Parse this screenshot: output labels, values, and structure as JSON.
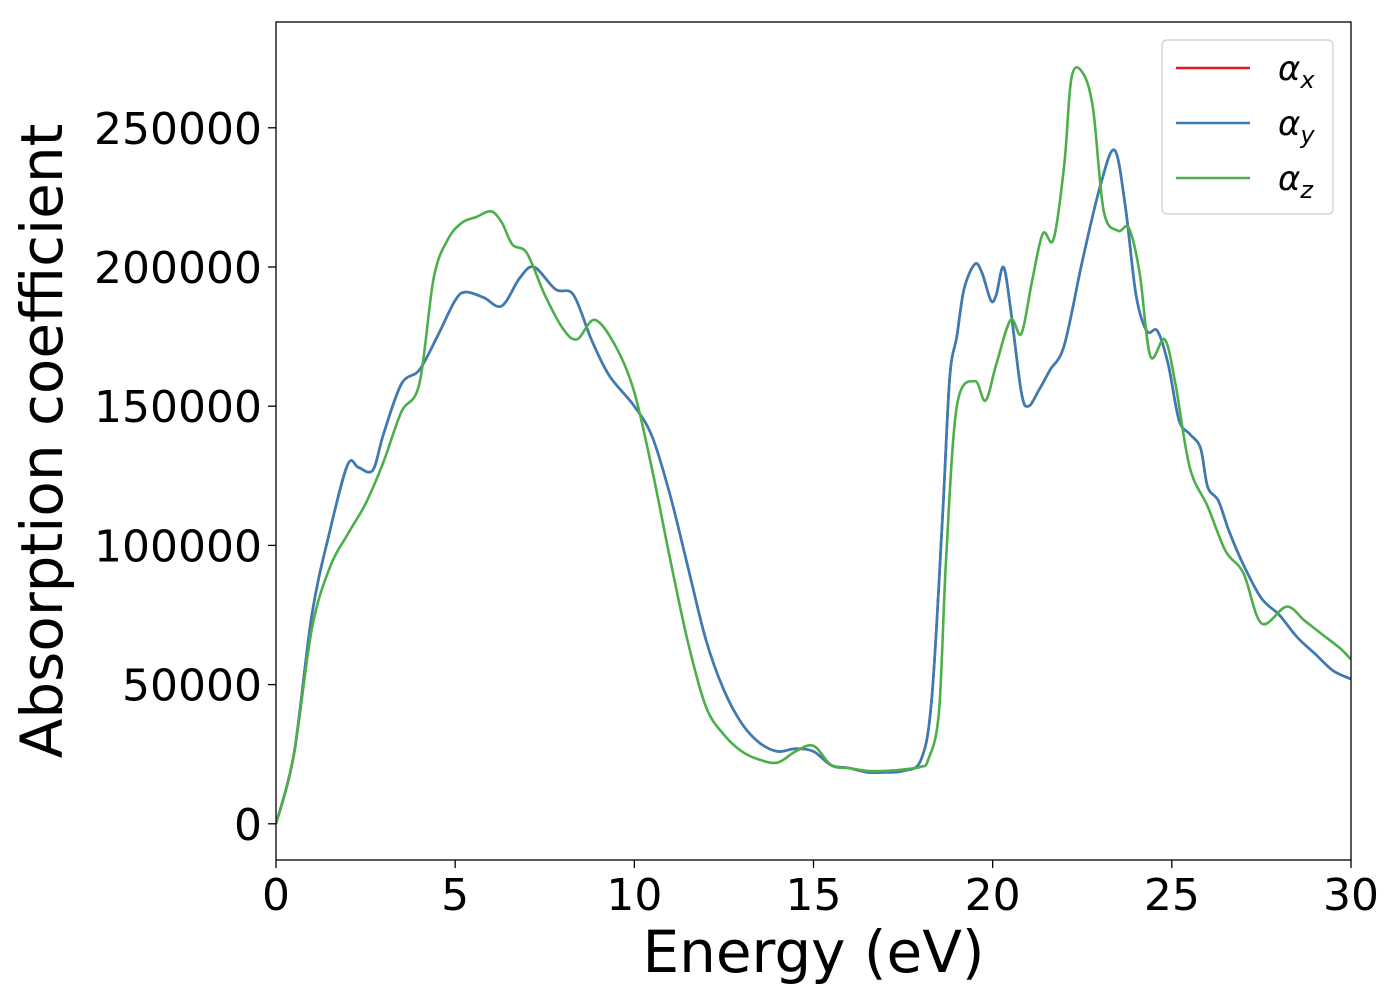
{
  "chart_data": {
    "type": "line",
    "xlabel": "Energy (eV)",
    "ylabel": "Absorption coefficient",
    "xlim": [
      0,
      30
    ],
    "ylim": [
      -13000,
      288000
    ],
    "x_ticks": [
      "0",
      "5",
      "10",
      "15",
      "20",
      "25",
      "30"
    ],
    "y_ticks": [
      "0",
      "50000",
      "100000",
      "150000",
      "200000",
      "250000"
    ],
    "grid": false,
    "legend_position": "top-right",
    "legend": [
      {
        "base": "α",
        "sub": "x",
        "color": "#e41a1c"
      },
      {
        "base": "α",
        "sub": "y",
        "color": "#377eb8"
      },
      {
        "base": "α",
        "sub": "z",
        "color": "#4daf4a"
      }
    ],
    "series": [
      {
        "name": "αx",
        "color": "#e41a1c",
        "x": [
          0,
          0.5,
          1,
          1.5,
          2,
          2.3,
          2.7,
          3,
          3.5,
          4,
          4.5,
          5,
          5.3,
          5.8,
          6.3,
          6.8,
          7.2,
          7.8,
          8.3,
          8.8,
          9.3,
          10,
          10.5,
          11,
          11.5,
          12,
          12.5,
          13,
          13.5,
          14,
          14.5,
          15,
          15.5,
          16,
          16.5,
          17,
          17.5,
          18,
          18.3,
          18.6,
          18.8,
          19,
          19.2,
          19.5,
          19.7,
          19.95,
          20.1,
          20.3,
          20.5,
          20.8,
          21,
          21.3,
          21.6,
          22,
          22.5,
          23,
          23.4,
          23.7,
          24,
          24.3,
          24.6,
          24.9,
          25.2,
          25.5,
          25.8,
          26,
          26.3,
          26.6,
          27,
          27.5,
          28,
          28.5,
          29,
          29.5,
          30
        ],
        "values": [
          0,
          25000,
          75000,
          105000,
          129000,
          128000,
          127000,
          140000,
          158000,
          163000,
          175000,
          188000,
          191000,
          189000,
          186000,
          196000,
          200000,
          192000,
          190000,
          174000,
          161000,
          150000,
          139000,
          118000,
          92000,
          66000,
          48000,
          36000,
          29000,
          26000,
          27000,
          26000,
          21000,
          20000,
          18500,
          18500,
          19000,
          23000,
          45000,
          110000,
          160000,
          175000,
          192000,
          201000,
          198000,
          188000,
          190000,
          200000,
          185000,
          155000,
          150000,
          156000,
          163000,
          172000,
          202000,
          229000,
          242000,
          222000,
          190000,
          177000,
          177000,
          165000,
          145000,
          140000,
          135000,
          121000,
          116000,
          105000,
          93000,
          81000,
          75000,
          67000,
          61000,
          55000,
          52000
        ]
      },
      {
        "name": "αy",
        "color": "#377eb8",
        "x": [
          0,
          0.5,
          1,
          1.5,
          2,
          2.3,
          2.7,
          3,
          3.5,
          4,
          4.5,
          5,
          5.3,
          5.8,
          6.3,
          6.8,
          7.2,
          7.8,
          8.3,
          8.8,
          9.3,
          10,
          10.5,
          11,
          11.5,
          12,
          12.5,
          13,
          13.5,
          14,
          14.5,
          15,
          15.5,
          16,
          16.5,
          17,
          17.5,
          18,
          18.3,
          18.6,
          18.8,
          19,
          19.2,
          19.5,
          19.7,
          19.95,
          20.1,
          20.3,
          20.5,
          20.8,
          21,
          21.3,
          21.6,
          22,
          22.5,
          23,
          23.4,
          23.7,
          24,
          24.3,
          24.6,
          24.9,
          25.2,
          25.5,
          25.8,
          26,
          26.3,
          26.6,
          27,
          27.5,
          28,
          28.5,
          29,
          29.5,
          30
        ],
        "values": [
          0,
          25000,
          75000,
          105000,
          129000,
          128000,
          127000,
          140000,
          158000,
          163000,
          175000,
          188000,
          191000,
          189000,
          186000,
          196000,
          200000,
          192000,
          190000,
          174000,
          161000,
          150000,
          139000,
          118000,
          92000,
          66000,
          48000,
          36000,
          29000,
          26000,
          27000,
          26000,
          21000,
          20000,
          18500,
          18500,
          19000,
          23000,
          45000,
          110000,
          160000,
          175000,
          192000,
          201000,
          198000,
          188000,
          190000,
          200000,
          185000,
          155000,
          150000,
          156000,
          163000,
          172000,
          202000,
          229000,
          242000,
          222000,
          190000,
          177000,
          177000,
          165000,
          145000,
          140000,
          135000,
          121000,
          116000,
          105000,
          93000,
          81000,
          75000,
          67000,
          61000,
          55000,
          52000
        ]
      },
      {
        "name": "αz",
        "color": "#4daf4a",
        "x": [
          0,
          0.5,
          1,
          1.5,
          2,
          2.5,
          3,
          3.5,
          4,
          4.4,
          4.8,
          5.2,
          5.6,
          6,
          6.3,
          6.6,
          7,
          7.5,
          8,
          8.4,
          8.9,
          9.5,
          10,
          10.5,
          11,
          11.5,
          12,
          12.5,
          13,
          13.5,
          14,
          14.5,
          15,
          15.5,
          16,
          16.5,
          17,
          17.5,
          18,
          18.2,
          18.5,
          18.7,
          19,
          19.5,
          19.8,
          20.1,
          20.5,
          20.8,
          21.1,
          21.4,
          21.7,
          22,
          22.2,
          22.5,
          22.8,
          23.1,
          23.5,
          23.8,
          24.1,
          24.4,
          24.8,
          25.1,
          25.5,
          26,
          26.5,
          27,
          27.5,
          28.2,
          28.7,
          29.2,
          29.7,
          30
        ],
        "values": [
          0,
          25000,
          70000,
          92000,
          104000,
          115000,
          130000,
          148000,
          158000,
          196000,
          210000,
          216000,
          218000,
          220000,
          216000,
          208000,
          205000,
          190000,
          178000,
          174000,
          181000,
          171000,
          155000,
          127000,
          95000,
          65000,
          42000,
          32000,
          26000,
          23000,
          22000,
          26000,
          28000,
          21000,
          20000,
          19000,
          19000,
          19500,
          20500,
          23000,
          40000,
          95000,
          150000,
          159000,
          152000,
          165000,
          181000,
          176000,
          195000,
          212000,
          210000,
          237000,
          268000,
          270000,
          257000,
          220000,
          213000,
          214000,
          198000,
          168000,
          174000,
          158000,
          128000,
          114000,
          98000,
          90000,
          72000,
          78000,
          73000,
          68000,
          63000,
          59000
        ]
      }
    ]
  }
}
